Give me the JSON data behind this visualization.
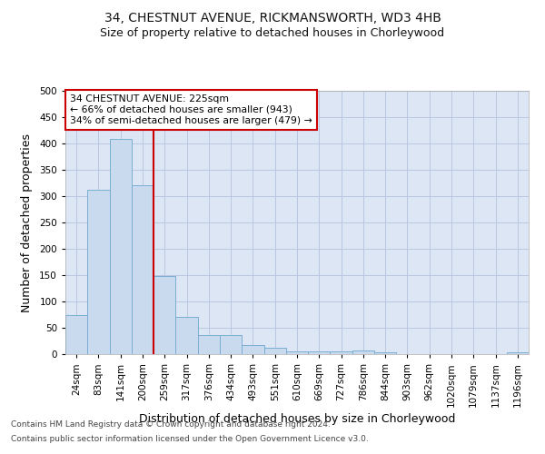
{
  "title": "34, CHESTNUT AVENUE, RICKMANSWORTH, WD3 4HB",
  "subtitle": "Size of property relative to detached houses in Chorleywood",
  "xlabel": "Distribution of detached houses by size in Chorleywood",
  "ylabel": "Number of detached properties",
  "footnote1": "Contains HM Land Registry data © Crown copyright and database right 2024.",
  "footnote2": "Contains public sector information licensed under the Open Government Licence v3.0.",
  "categories": [
    "24sqm",
    "83sqm",
    "141sqm",
    "200sqm",
    "259sqm",
    "317sqm",
    "376sqm",
    "434sqm",
    "493sqm",
    "551sqm",
    "610sqm",
    "669sqm",
    "727sqm",
    "786sqm",
    "844sqm",
    "903sqm",
    "962sqm",
    "1020sqm",
    "1079sqm",
    "1137sqm",
    "1196sqm"
  ],
  "values": [
    75,
    312,
    408,
    320,
    148,
    70,
    36,
    36,
    18,
    12,
    5,
    6,
    6,
    7,
    4,
    0,
    0,
    0,
    0,
    0,
    4
  ],
  "bar_color": "#c9d9ee",
  "bar_edge_color": "#7aaed4",
  "vline_color": "#cc0000",
  "annotation_text": "34 CHESTNUT AVENUE: 225sqm\n← 66% of detached houses are smaller (943)\n34% of semi-detached houses are larger (479) →",
  "annotation_box_color": "#ffffff",
  "annotation_box_edge": "#cc0000",
  "ylim": [
    0,
    500
  ],
  "yticks": [
    0,
    50,
    100,
    150,
    200,
    250,
    300,
    350,
    400,
    450,
    500
  ],
  "bg_color": "#dce6f5",
  "grid_color": "#b8c8de",
  "title_fontsize": 10,
  "subtitle_fontsize": 9,
  "xlabel_fontsize": 9,
  "ylabel_fontsize": 9,
  "tick_fontsize": 7.5,
  "footnote_fontsize": 6.5
}
